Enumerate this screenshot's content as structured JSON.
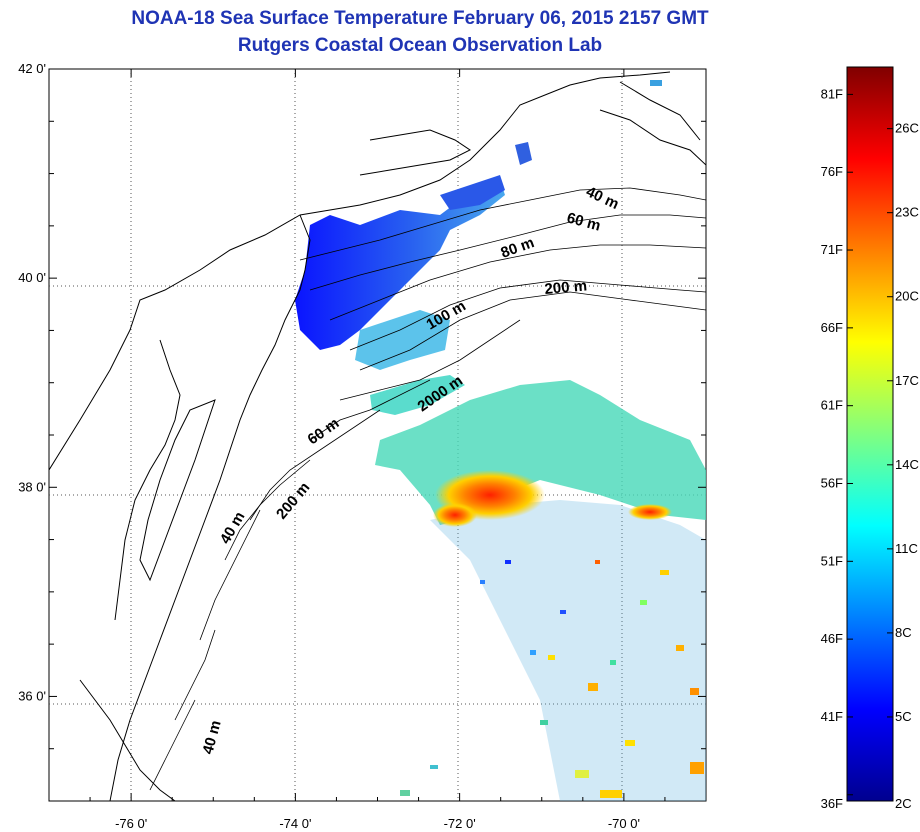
{
  "header": {
    "title": "NOAA-18 Sea Surface Temperature February 06, 2015 2157 GMT",
    "subtitle": "Rutgers Coastal Ocean Observation Lab"
  },
  "map": {
    "lon_range": [
      -77,
      -69
    ],
    "lat_range": [
      35,
      42
    ],
    "x_ticks": [
      {
        "value": -76,
        "label": "-76 0'"
      },
      {
        "value": -74,
        "label": "-74 0'"
      },
      {
        "value": -72,
        "label": "-72 0'"
      },
      {
        "value": -70,
        "label": "-70 0'"
      }
    ],
    "y_ticks": [
      {
        "value": 42,
        "label": "42 0'"
      },
      {
        "value": 40,
        "label": "40 0'"
      },
      {
        "value": 38,
        "label": "38 0'"
      },
      {
        "value": 36,
        "label": "36 0'"
      }
    ],
    "grid": "dotted",
    "isobath_labels": [
      "40 m",
      "60 m",
      "80 m",
      "200 m",
      "100 m",
      "2000 m",
      "60 m",
      "200 m",
      "40 m",
      "40 m"
    ]
  },
  "colorbar": {
    "range_c": [
      2,
      28.2
    ],
    "fahrenheit_labels": [
      "81F",
      "76F",
      "71F",
      "66F",
      "61F",
      "56F",
      "51F",
      "46F",
      "41F",
      "36F"
    ],
    "celsius_labels": [
      "26C",
      "23C",
      "20C",
      "17C",
      "14C",
      "11C",
      "8C",
      "5C",
      "2C"
    ],
    "colors": [
      "#00008f",
      "#0000ff",
      "#0080ff",
      "#00ffff",
      "#80ff80",
      "#ffff00",
      "#ff8000",
      "#ff0000",
      "#800000"
    ]
  }
}
